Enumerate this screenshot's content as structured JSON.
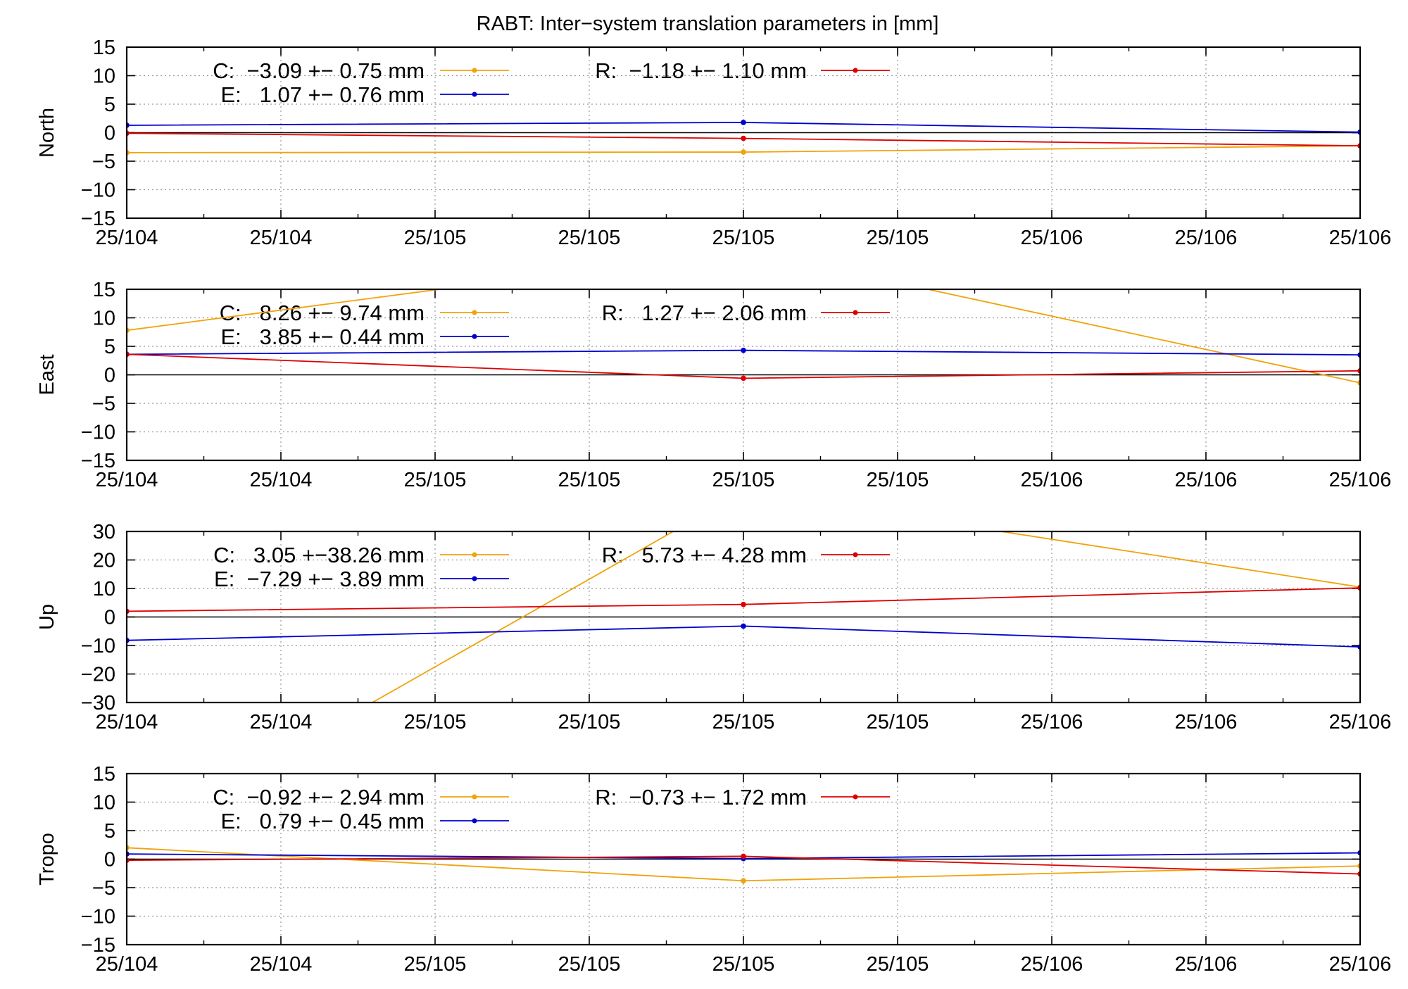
{
  "title": "RABT: Inter−system translation parameters in [mm]",
  "colors": {
    "C": "#f0a30a",
    "E": "#0000cc",
    "R": "#dd0000",
    "grid": "#999999",
    "zero": "#000000"
  },
  "chart_data": [
    {
      "type": "line",
      "ylabel": "North",
      "ylim": [
        -15,
        15
      ],
      "yticks": [
        "15",
        "10",
        "5",
        "0",
        "−5",
        "−10",
        "−15"
      ],
      "ytick_values": [
        15,
        10,
        5,
        0,
        -5,
        -10,
        -15
      ],
      "xlim": [
        0,
        8
      ],
      "xticks": [
        "25/104",
        "25/104",
        "25/105",
        "25/105",
        "25/105",
        "25/105",
        "25/106",
        "25/106",
        "25/106"
      ],
      "legend": {
        "C": "C:  −3.09 +− 0.75 mm",
        "E": "E:   1.07 +− 0.76 mm",
        "R": "R:  −1.18 +− 1.10 mm"
      },
      "series": [
        {
          "key": "C",
          "x": [
            0,
            4,
            8
          ],
          "y": [
            -3.5,
            -3.4,
            -2.3
          ]
        },
        {
          "key": "E",
          "x": [
            0,
            4,
            8
          ],
          "y": [
            1.3,
            1.8,
            0.1
          ]
        },
        {
          "key": "R",
          "x": [
            0,
            4,
            8
          ],
          "y": [
            -0.1,
            -1.0,
            -2.3
          ]
        }
      ]
    },
    {
      "type": "line",
      "ylabel": "East",
      "ylim": [
        -15,
        15
      ],
      "yticks": [
        "15",
        "10",
        "5",
        "0",
        "−5",
        "−10",
        "−15"
      ],
      "ytick_values": [
        15,
        10,
        5,
        0,
        -5,
        -10,
        -15
      ],
      "xlim": [
        0,
        8
      ],
      "xticks": [
        "25/104",
        "25/104",
        "25/105",
        "25/105",
        "25/105",
        "25/105",
        "25/106",
        "25/106",
        "25/106"
      ],
      "legend": {
        "C": "C:   8.26 +− 9.74 mm",
        "E": "E:   3.85 +− 0.44 mm",
        "R": "R:   1.27 +− 2.06 mm"
      },
      "series": [
        {
          "key": "C",
          "x": [
            0,
            4,
            8
          ],
          "y": [
            7.8,
            22.0,
            -1.4
          ]
        },
        {
          "key": "E",
          "x": [
            0,
            4,
            8
          ],
          "y": [
            3.6,
            4.3,
            3.5
          ]
        },
        {
          "key": "R",
          "x": [
            0,
            4,
            8
          ],
          "y": [
            3.6,
            -0.6,
            0.7
          ]
        }
      ]
    },
    {
      "type": "line",
      "ylabel": "Up",
      "ylim": [
        -30,
        30
      ],
      "yticks": [
        "30",
        "20",
        "10",
        "0",
        "−10",
        "−20",
        "−30"
      ],
      "ytick_values": [
        30,
        20,
        10,
        0,
        -10,
        -20,
        -30
      ],
      "xlim": [
        0,
        8
      ],
      "xticks": [
        "25/104",
        "25/104",
        "25/105",
        "25/105",
        "25/105",
        "25/105",
        "25/106",
        "25/106",
        "25/106"
      ],
      "legend": {
        "C": "C:   3.05 +−38.26 mm",
        "E": "E:  −7.29 +− 3.89 mm",
        "R": "R:   5.73 +− 4.28 mm"
      },
      "series": [
        {
          "key": "C",
          "x": [
            0,
            4,
            8
          ],
          "y": [
            -79.0,
            44.0,
            10.5
          ]
        },
        {
          "key": "E",
          "x": [
            0,
            4,
            8
          ],
          "y": [
            -8.2,
            -3.2,
            -10.5
          ]
        },
        {
          "key": "R",
          "x": [
            0,
            4,
            8
          ],
          "y": [
            2.0,
            4.4,
            10.2
          ]
        }
      ]
    },
    {
      "type": "line",
      "ylabel": "Tropo",
      "ylim": [
        -15,
        15
      ],
      "yticks": [
        "15",
        "10",
        "5",
        "0",
        "−5",
        "−10",
        "−15"
      ],
      "ytick_values": [
        15,
        10,
        5,
        0,
        -5,
        -10,
        -15
      ],
      "xlim": [
        0,
        8
      ],
      "xticks": [
        "25/104",
        "25/104",
        "25/105",
        "25/105",
        "25/105",
        "25/105",
        "25/106",
        "25/106",
        "25/106"
      ],
      "legend": {
        "C": "C:  −0.92 +− 2.94 mm",
        "E": "E:   0.79 +− 0.45 mm",
        "R": "R:  −0.73 +− 1.72 mm"
      },
      "series": [
        {
          "key": "C",
          "x": [
            0,
            4,
            8
          ],
          "y": [
            2.0,
            -3.8,
            -1.2
          ]
        },
        {
          "key": "E",
          "x": [
            0,
            4,
            8
          ],
          "y": [
            0.9,
            0.1,
            1.1
          ]
        },
        {
          "key": "R",
          "x": [
            0,
            4,
            8
          ],
          "y": [
            -0.2,
            0.5,
            -2.6
          ]
        }
      ]
    }
  ]
}
